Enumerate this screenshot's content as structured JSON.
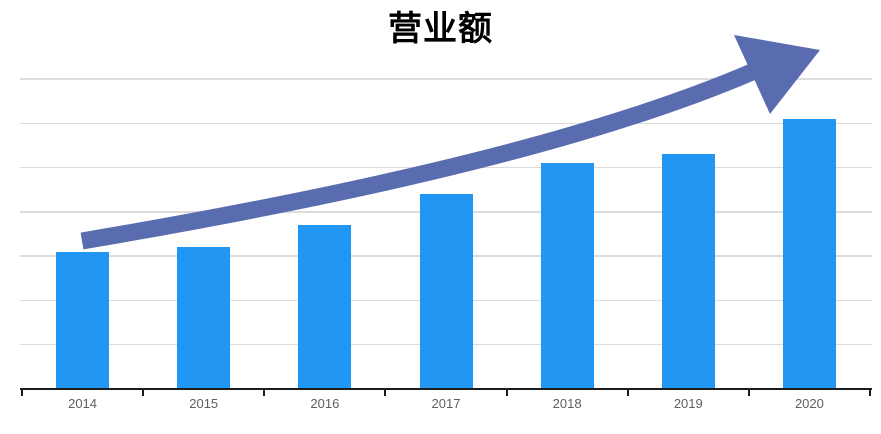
{
  "chart_data": {
    "type": "bar",
    "title": "营业额",
    "categories": [
      "2014",
      "2015",
      "2016",
      "2017",
      "2018",
      "2019",
      "2020"
    ],
    "values": [
      31,
      32,
      37,
      44,
      51,
      53,
      61
    ],
    "values_note": "estimated in gridline units; y-axis has no printed labels",
    "xlabel": "",
    "ylabel": "",
    "ylim": [
      0,
      70
    ],
    "gridline_step": 10,
    "y_axis_labels_shown": false,
    "grid": "horizontal",
    "legend": "none",
    "annotation": "thick curved upward trend arrow from 2014 bar to above 2020 bar",
    "colors": {
      "bar": "#2196F3",
      "arrow": "#5A6CB0",
      "axis": "#1c1c1c",
      "gridline": "#dcdcdc",
      "tick_label": "#5f5f5f",
      "title": "#000000"
    }
  }
}
